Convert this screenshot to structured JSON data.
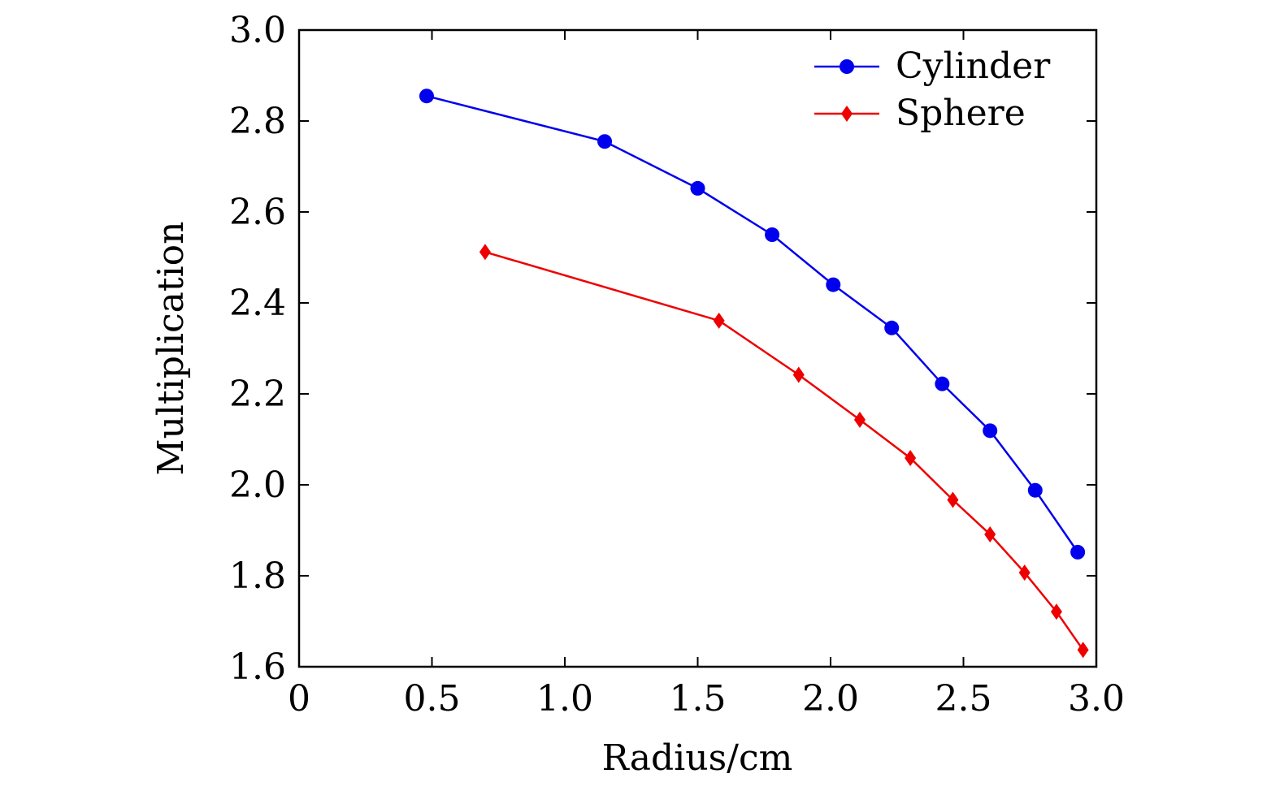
{
  "chart_data": {
    "type": "line",
    "title": "",
    "xlabel": "Radius/cm",
    "ylabel": "Multiplication",
    "xlim": [
      0,
      3.0
    ],
    "ylim": [
      1.6,
      3.0
    ],
    "xticks": [
      0,
      0.5,
      1.0,
      1.5,
      2.0,
      2.5,
      3.0
    ],
    "xtick_labels": [
      "0",
      "0.5",
      "1.0",
      "1.5",
      "2.0",
      "2.5",
      "3.0"
    ],
    "yticks": [
      1.6,
      1.8,
      2.0,
      2.2,
      2.4,
      2.6,
      2.8,
      3.0
    ],
    "ytick_labels": [
      "1.6",
      "1.8",
      "2.0",
      "2.2",
      "2.4",
      "2.6",
      "2.8",
      "3.0"
    ],
    "grid": false,
    "legend_position": "top-right",
    "series": [
      {
        "name": "Cylinder",
        "color": "#0000ee",
        "marker": "circle",
        "x": [
          0.48,
          1.15,
          1.5,
          1.78,
          2.01,
          2.23,
          2.42,
          2.6,
          2.77,
          2.93
        ],
        "y": [
          2.855,
          2.755,
          2.652,
          2.55,
          2.44,
          2.345,
          2.222,
          2.119,
          1.988,
          1.852
        ]
      },
      {
        "name": "Sphere",
        "color": "#ee0000",
        "marker": "diamond",
        "x": [
          0.7,
          1.58,
          1.88,
          2.11,
          2.3,
          2.46,
          2.6,
          2.73,
          2.85,
          2.95
        ],
        "y": [
          2.512,
          2.361,
          2.242,
          2.143,
          2.059,
          1.967,
          1.891,
          1.807,
          1.721,
          1.637
        ]
      }
    ]
  }
}
